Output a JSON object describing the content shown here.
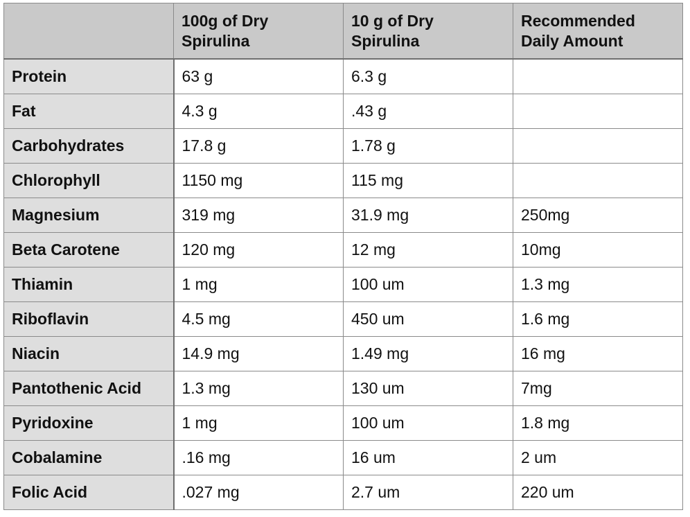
{
  "table": {
    "headers": [
      "",
      "100g of Dry Spirulina",
      "10 g of Dry Spirulina",
      "Recommended Daily Amount"
    ],
    "rows": [
      {
        "nutrient": "Protein",
        "per_100g": "63 g",
        "per_10g": "6.3 g",
        "daily": ""
      },
      {
        "nutrient": "Fat",
        "per_100g": "4.3 g",
        "per_10g": ".43 g",
        "daily": ""
      },
      {
        "nutrient": "Carbohydrates",
        "per_100g": "17.8 g",
        "per_10g": "1.78 g",
        "daily": ""
      },
      {
        "nutrient": "Chlorophyll",
        "per_100g": "1150 mg",
        "per_10g": "115 mg",
        "daily": ""
      },
      {
        "nutrient": "Magnesium",
        "per_100g": "319 mg",
        "per_10g": "31.9 mg",
        "daily": "250mg"
      },
      {
        "nutrient": "Beta Carotene",
        "per_100g": "120 mg",
        "per_10g": "12 mg",
        "daily": "10mg"
      },
      {
        "nutrient": "Thiamin",
        "per_100g": "1 mg",
        "per_10g": "100 um",
        "daily": "1.3 mg"
      },
      {
        "nutrient": "Riboflavin",
        "per_100g": "4.5 mg",
        "per_10g": "450 um",
        "daily": "1.6 mg"
      },
      {
        "nutrient": "Niacin",
        "per_100g": "14.9 mg",
        "per_10g": "1.49 mg",
        "daily": "16 mg"
      },
      {
        "nutrient": "Pantothenic Acid",
        "per_100g": "1.3 mg",
        "per_10g": "130 um",
        "daily": "7mg"
      },
      {
        "nutrient": "Pyridoxine",
        "per_100g": "1 mg",
        "per_10g": "100 um",
        "daily": "1.8 mg"
      },
      {
        "nutrient": "Cobalamine",
        "per_100g": ".16 mg",
        "per_10g": "16 um",
        "daily": "2 um"
      },
      {
        "nutrient": "Folic Acid",
        "per_100g": ".027 mg",
        "per_10g": "2.7 um",
        "daily": "220 um"
      }
    ]
  },
  "colors": {
    "header_bg": "#c9c9c9",
    "row_label_bg": "#dedede",
    "cell_bg": "#ffffff",
    "border": "#8a8a8a"
  }
}
